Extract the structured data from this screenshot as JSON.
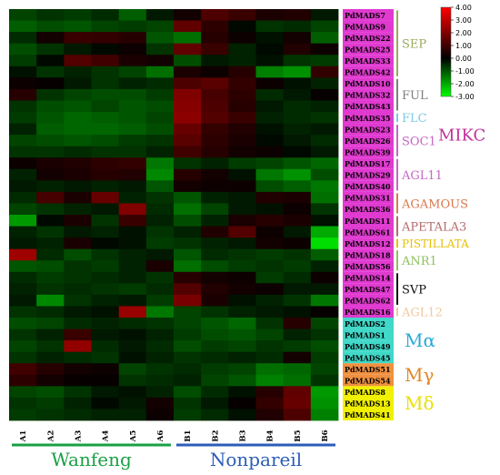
{
  "colors": {
    "low": "#00ff00",
    "mid": "#000000",
    "high": "#ff0000",
    "gene_label_bg": "#e03ad0",
    "wanfeng": "#1aa044",
    "nonpareil": "#2b5db8"
  },
  "chart_data": {
    "type": "heatmap",
    "color_range": [
      -3,
      4
    ],
    "legend_ticks": [
      "4.00",
      "3.00",
      "2.00",
      "1.00",
      "0.00",
      "-1.00",
      "-2.00",
      "-3.00"
    ],
    "columns": [
      "A1",
      "A2",
      "A3",
      "A4",
      "A5",
      "A6",
      "B1",
      "B2",
      "B3",
      "B4",
      "B5",
      "B6"
    ],
    "column_groups": [
      {
        "name": "Wanfeng",
        "color": "#1aa044"
      },
      {
        "name": "Nonpareil",
        "color": "#2b5db8"
      }
    ],
    "rows": [
      "PdMADS7",
      "PdMADS9",
      "PdMADS22",
      "PdMADS25",
      "PdMADS33",
      "PdMADS42",
      "PdMADS10",
      "PdMADS32",
      "PdMADS43",
      "PdMADS35",
      "PdMADS23",
      "PdMADS26",
      "PdMADS39",
      "PdMADS17",
      "PdMADS29",
      "PdMADS40",
      "PdMADS31",
      "PdMADS36",
      "PdMADS11",
      "PdMADS61",
      "PdMADS12",
      "PdMADS18",
      "PdMADS56",
      "PdMADS14",
      "PdMADS47",
      "PdMADS62",
      "PdMADS16",
      "PdMADS2",
      "PdMADS1",
      "PdMADS49",
      "PdMADS45",
      "PdMADS51",
      "PdMADS54",
      "PdMADS8",
      "PdMADS13",
      "PdMADS41"
    ],
    "values": [
      [
        -0.8,
        -0.6,
        -0.7,
        -0.5,
        -1.1,
        -0.3,
        0.3,
        1.2,
        0.9,
        0.4,
        0.5,
        -0.3
      ],
      [
        -1.1,
        -0.9,
        -1.0,
        -0.8,
        -0.7,
        -0.8,
        1.5,
        0.7,
        -0.1,
        -0.6,
        -0.5,
        -0.8
      ],
      [
        -0.5,
        0.3,
        0.9,
        0.8,
        0.6,
        -1.0,
        -1.3,
        0.6,
        0.2,
        -0.2,
        0.3,
        -1.1
      ],
      [
        -0.9,
        -0.6,
        -0.3,
        -0.1,
        0.2,
        -0.6,
        1.5,
        0.9,
        -0.4,
        -0.1,
        0.5,
        0.2
      ],
      [
        -0.7,
        -0.1,
        1.3,
        1.0,
        0.4,
        0.3,
        -0.9,
        -0.3,
        -0.4,
        -0.2,
        -0.6,
        -0.7
      ],
      [
        -0.2,
        -0.6,
        -0.4,
        -0.6,
        -0.8,
        -1.3,
        0.4,
        0.2,
        0.6,
        -1.5,
        -1.7,
        0.8
      ],
      [
        0.2,
        0.1,
        -0.3,
        -0.6,
        -0.4,
        -0.5,
        1.2,
        1.4,
        0.8,
        0.2,
        -0.2,
        -0.4
      ],
      [
        0.6,
        -0.6,
        -0.8,
        -0.9,
        -0.9,
        -0.7,
        2.0,
        1.1,
        0.7,
        -0.5,
        -0.3,
        0.1
      ],
      [
        -0.6,
        -0.9,
        -1.0,
        -0.8,
        -1.0,
        -0.9,
        2.1,
        1.2,
        0.6,
        -0.3,
        -0.5,
        -0.4
      ],
      [
        -0.7,
        -1.0,
        -1.2,
        -1.1,
        -1.0,
        -0.8,
        2.2,
        1.3,
        0.9,
        -0.4,
        -0.5,
        -0.6
      ],
      [
        -0.4,
        -1.1,
        -1.2,
        -1.2,
        -1.1,
        -0.9,
        1.6,
        0.8,
        0.5,
        -0.2,
        -0.4,
        -0.3
      ],
      [
        -0.8,
        -0.9,
        -1.0,
        -0.9,
        -0.7,
        -0.6,
        1.4,
        0.7,
        0.4,
        -0.1,
        -0.3,
        -0.5
      ],
      [
        -0.6,
        -0.6,
        -0.5,
        -0.6,
        -0.6,
        -0.4,
        1.0,
        0.6,
        0.3,
        0.2,
        -0.1,
        -0.3
      ],
      [
        0.2,
        0.4,
        0.5,
        0.7,
        0.8,
        -1.4,
        -0.6,
        -0.4,
        -0.7,
        -0.8,
        -1.0,
        -1.2
      ],
      [
        -0.4,
        0.3,
        0.4,
        0.6,
        0.5,
        -1.6,
        0.6,
        0.3,
        -0.2,
        -1.4,
        -1.7,
        -0.9
      ],
      [
        -0.3,
        -0.4,
        -0.3,
        -0.4,
        -0.3,
        -1.0,
        0.3,
        0.2,
        0.2,
        -0.9,
        -1.1,
        -1.4
      ],
      [
        -0.5,
        1.1,
        0.4,
        1.6,
        -0.4,
        -0.6,
        -1.0,
        -0.4,
        -0.3,
        0.5,
        0.4,
        -1.3
      ],
      [
        -0.8,
        -0.6,
        -0.4,
        -0.3,
        2.0,
        -0.5,
        -1.3,
        -0.8,
        -0.3,
        -0.2,
        0.2,
        -0.6
      ],
      [
        -1.8,
        -0.1,
        0.4,
        -0.6,
        0.9,
        -0.4,
        -0.9,
        -0.4,
        0.4,
        0.6,
        0.4,
        -0.2
      ],
      [
        -0.4,
        -0.6,
        -0.3,
        -0.4,
        -0.2,
        -0.6,
        -0.4,
        0.5,
        1.3,
        0.2,
        -0.3,
        -2.0
      ],
      [
        -0.3,
        -0.4,
        0.4,
        -0.1,
        -0.2,
        -0.7,
        -0.6,
        -0.4,
        -0.3,
        0.3,
        0.2,
        -2.6
      ],
      [
        2.5,
        -0.5,
        -0.9,
        -0.6,
        -0.4,
        -0.3,
        -1.0,
        -0.5,
        -0.6,
        -0.7,
        -0.6,
        -1.1
      ],
      [
        -1.0,
        -0.9,
        -0.6,
        -0.7,
        -0.4,
        0.4,
        -1.3,
        -0.9,
        -0.7,
        -0.6,
        -0.7,
        -0.4
      ],
      [
        -0.5,
        -0.7,
        -0.6,
        -0.5,
        -0.4,
        -0.6,
        0.6,
        0.3,
        0.2,
        -0.7,
        -0.5,
        0.2
      ],
      [
        -0.4,
        -0.6,
        -0.5,
        -0.6,
        -0.7,
        -0.5,
        1.3,
        0.5,
        0.3,
        0.2,
        -0.3,
        -0.3
      ],
      [
        -0.3,
        -1.6,
        -0.6,
        -0.4,
        -0.3,
        -0.7,
        1.9,
        0.4,
        -0.2,
        -0.4,
        -0.6,
        -1.4
      ],
      [
        -0.6,
        -0.5,
        -0.3,
        -0.2,
        2.4,
        -1.4,
        -0.8,
        -0.6,
        -0.4,
        -0.3,
        -0.2,
        0.1
      ],
      [
        -0.9,
        -0.8,
        -0.5,
        -0.4,
        -0.5,
        -0.6,
        -0.8,
        -1.0,
        -1.2,
        -0.6,
        0.6,
        -0.8
      ],
      [
        -0.6,
        -0.4,
        0.9,
        -0.3,
        -0.2,
        -0.4,
        -0.7,
        -0.9,
        -1.0,
        -0.8,
        -0.4,
        -0.6
      ],
      [
        -0.8,
        -0.6,
        2.3,
        -0.5,
        -0.3,
        -0.5,
        -0.9,
        -0.7,
        -0.8,
        -0.6,
        -0.7,
        -0.9
      ],
      [
        -0.6,
        -0.4,
        -0.5,
        -0.6,
        -0.2,
        -0.4,
        -0.6,
        -0.5,
        -0.4,
        -0.5,
        0.3,
        -0.7
      ],
      [
        1.0,
        0.6,
        0.3,
        0.2,
        -0.8,
        -0.6,
        -0.5,
        -0.7,
        -0.8,
        -1.3,
        -1.2,
        -0.8
      ],
      [
        0.7,
        0.3,
        0.1,
        0.1,
        -0.6,
        -0.5,
        -0.4,
        -0.8,
        -1.0,
        -1.5,
        -1.3,
        -0.6
      ],
      [
        -0.8,
        -0.9,
        -0.6,
        -0.3,
        -0.2,
        -0.4,
        -0.9,
        -0.5,
        -0.2,
        0.6,
        1.5,
        -1.8
      ],
      [
        -0.6,
        -0.7,
        -0.4,
        -0.1,
        -0.3,
        0.3,
        -0.6,
        -0.3,
        0.1,
        0.8,
        1.6,
        -1.7
      ],
      [
        -0.7,
        -0.6,
        -0.5,
        -0.4,
        -0.4,
        0.2,
        -0.7,
        -0.5,
        -0.2,
        0.5,
        1.2,
        -1.5
      ]
    ],
    "families": [
      {
        "name": "SEP",
        "start": 0,
        "end": 5,
        "color": "#9aaa5c"
      },
      {
        "name": "FUL",
        "start": 6,
        "end": 8,
        "color": "#7e7e7e"
      },
      {
        "name": "FLC",
        "start": 9,
        "end": 9,
        "color": "#7ec8e3"
      },
      {
        "name": "SOC1",
        "start": 10,
        "end": 12,
        "color": "#c467c4"
      },
      {
        "name": "AGL11",
        "start": 13,
        "end": 15,
        "color": "#c467c4"
      },
      {
        "name": "AGAMOUS",
        "start": 16,
        "end": 17,
        "color": "#d7784f"
      },
      {
        "name": "APETALA3",
        "start": 18,
        "end": 19,
        "color": "#b56a6a"
      },
      {
        "name": "PISTILLATA",
        "start": 20,
        "end": 20,
        "color": "#e8c000"
      },
      {
        "name": "ANR1",
        "start": 21,
        "end": 22,
        "color": "#8fc060"
      },
      {
        "name": "SVP",
        "start": 23,
        "end": 25,
        "color": "#111111"
      },
      {
        "name": "AGL12",
        "start": 26,
        "end": 26,
        "color": "#f0c8a0"
      }
    ],
    "mikc_label": {
      "name": "MIKC",
      "color": "#c0309a"
    },
    "types": [
      {
        "name": "Mα",
        "start": 27,
        "end": 30,
        "label_bg": "#40d8c8",
        "text_color": "#2aa8d8"
      },
      {
        "name": "Mγ",
        "start": 31,
        "end": 32,
        "label_bg": "#f09040",
        "text_color": "#e08828"
      },
      {
        "name": "Mδ",
        "start": 33,
        "end": 35,
        "label_bg": "#f0f000",
        "text_color": "#e8e000"
      }
    ]
  }
}
